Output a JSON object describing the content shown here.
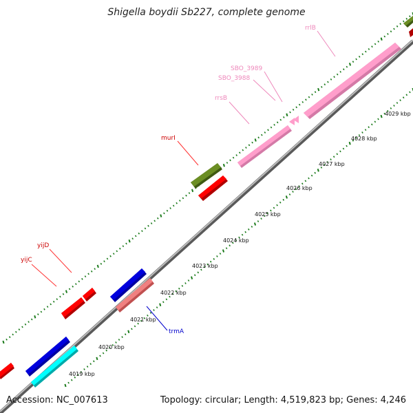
{
  "header": {
    "title": "Shigella boydii Sb227, complete genome"
  },
  "footer": {
    "accession": "Accession: NC_007613",
    "summary": "Topology: circular; Length: 4,519,823 bp; Genes: 4,246"
  },
  "scale": {
    "tick_labels": [
      "4019 kbp",
      "4020 kbp",
      "4021 kbp",
      "4022 kbp",
      "4023 kbp",
      "4024 kbp",
      "4025 kbp",
      "4026 kbp",
      "4027 kbp",
      "4028 kbp",
      "4029 kbp"
    ]
  },
  "genes": [
    {
      "name": "yijC",
      "color": "#ff0000",
      "label_color": "#cc0000"
    },
    {
      "name": "yijD",
      "color": "#ff0000",
      "label_color": "#cc0000"
    },
    {
      "name": "murI",
      "color": "#6b8e23",
      "label_color": "#cc0000"
    },
    {
      "name": "rrsB",
      "color": "#ff9ecb",
      "label_color": "#ee88bb"
    },
    {
      "name": "SBO_3988",
      "color": "#ff9ecb",
      "label_color": "#ee88bb"
    },
    {
      "name": "SBO_3989",
      "color": "#ff9ecb",
      "label_color": "#ee88bb"
    },
    {
      "name": "rrlB",
      "color": "#ff9ecb",
      "label_color": "#ee88bb"
    },
    {
      "name": "trmA",
      "color": "#f08080",
      "label_color": "#0000cc"
    }
  ],
  "colors": {
    "backbone": "#8c8c8c",
    "ticks": "#1a7a1a",
    "red": "#ff0000",
    "olive": "#6b8e23",
    "pink": "#ff9ecb",
    "blue": "#0000dd",
    "cyan": "#00ffff",
    "salmon": "#f08080"
  }
}
